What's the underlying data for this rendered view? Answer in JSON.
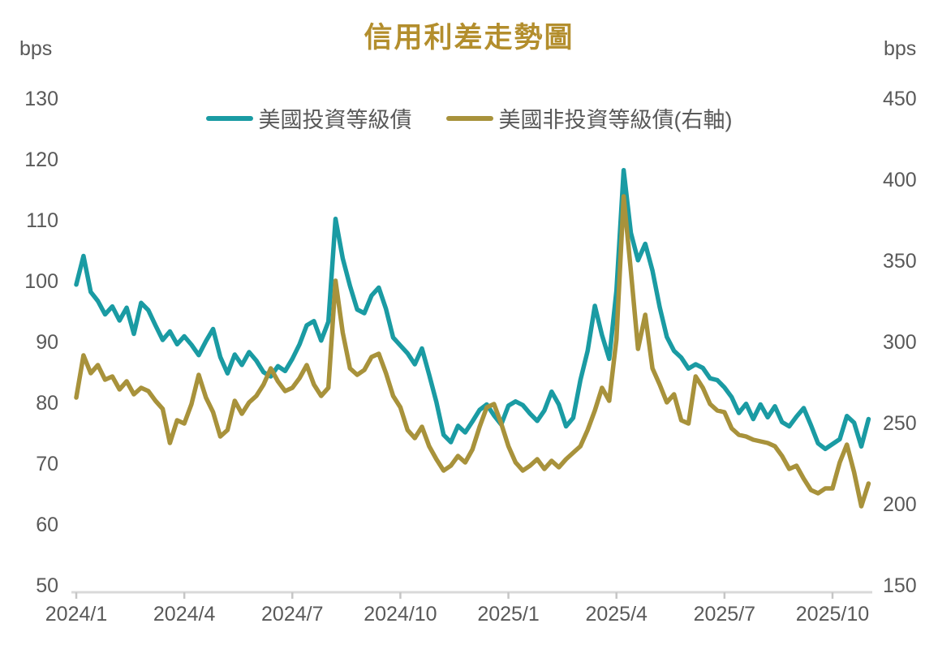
{
  "title": "信用利差走勢圖",
  "left_axis": {
    "unit": "bps",
    "min": 50,
    "max": 130,
    "ticks": [
      130,
      120,
      110,
      100,
      90,
      80,
      70,
      60,
      50
    ]
  },
  "right_axis": {
    "unit": "bps",
    "min": 150,
    "max": 450,
    "ticks": [
      450,
      400,
      350,
      300,
      250,
      200,
      150
    ]
  },
  "x_axis": {
    "tick_labels": [
      "2024/1",
      "2024/4",
      "2024/7",
      "2024/10",
      "2025/1",
      "2025/4",
      "2025/7",
      "2025/10"
    ],
    "tick_months": [
      0,
      3,
      6,
      9,
      12,
      15,
      18,
      21
    ]
  },
  "colors": {
    "title": "#B38E2D",
    "axis_text": "#595959",
    "axis_line": "#D9D9D9",
    "tick_mark": "#C6C6C6",
    "ig": "#1A9BA3",
    "hy": "#A8923B"
  },
  "chart_data": {
    "type": "line",
    "x_start": "2024/1",
    "x_end": "2025/11",
    "points_per_month": 5,
    "grid": "off",
    "legend_position": "top-center",
    "series": [
      {
        "name": "美國投資等級債",
        "axis": "left",
        "color": "#1A9BA3",
        "values": [
          99.5,
          104.2,
          98.3,
          96.8,
          94.6,
          95.9,
          93.6,
          95.7,
          91.4,
          96.5,
          95.3,
          92.8,
          90.4,
          91.8,
          89.7,
          91.0,
          89.6,
          87.9,
          90.2,
          92.2,
          87.6,
          84.9,
          88.0,
          86.3,
          88.4,
          87.0,
          85.1,
          84.4,
          86.1,
          85.3,
          87.3,
          89.7,
          92.8,
          93.5,
          90.3,
          93.4,
          110.3,
          103.8,
          99.3,
          95.4,
          94.8,
          97.7,
          99.0,
          95.5,
          90.8,
          89.5,
          88.2,
          86.4,
          89.0,
          84.7,
          80.2,
          74.8,
          73.6,
          76.3,
          75.2,
          77.0,
          78.9,
          79.8,
          78.0,
          76.5,
          79.6,
          80.3,
          79.7,
          78.3,
          77.1,
          78.8,
          81.9,
          79.8,
          76.2,
          77.6,
          83.8,
          88.6,
          96.0,
          91.2,
          87.3,
          98.5,
          118.3,
          108.0,
          103.5,
          106.2,
          101.8,
          95.8,
          90.9,
          88.6,
          87.5,
          85.7,
          86.4,
          85.8,
          84.1,
          83.8,
          82.6,
          81.0,
          78.4,
          79.9,
          77.4,
          79.8,
          77.7,
          79.5,
          76.9,
          76.2,
          77.8,
          79.2,
          76.4,
          73.4,
          72.5,
          73.3,
          74.1,
          77.9,
          76.8,
          72.9,
          77.4
        ]
      },
      {
        "name": "美國非投資等級債(右軸)",
        "axis": "right",
        "color": "#A8923B",
        "values": [
          266,
          292,
          281,
          286,
          277,
          279,
          271,
          276,
          268,
          272,
          270,
          264,
          259,
          238,
          252,
          250,
          262,
          280,
          266,
          257,
          242,
          246,
          264,
          256,
          263,
          267,
          274,
          284,
          276,
          270,
          272,
          278,
          286,
          274,
          267,
          272,
          338,
          306,
          284,
          280,
          283,
          291,
          293,
          281,
          267,
          260,
          246,
          241,
          248,
          236,
          228,
          221,
          224,
          230,
          226,
          234,
          248,
          260,
          262,
          250,
          236,
          226,
          221,
          224,
          228,
          222,
          227,
          223,
          228,
          232,
          236,
          246,
          258,
          272,
          264,
          302,
          390,
          344,
          296,
          317,
          284,
          274,
          263,
          268,
          252,
          250,
          279,
          272,
          262,
          258,
          257,
          247,
          243,
          242,
          240,
          239,
          238,
          236,
          230,
          222,
          224,
          216,
          209,
          207,
          210,
          210,
          226,
          237,
          220,
          199,
          213
        ]
      }
    ]
  }
}
